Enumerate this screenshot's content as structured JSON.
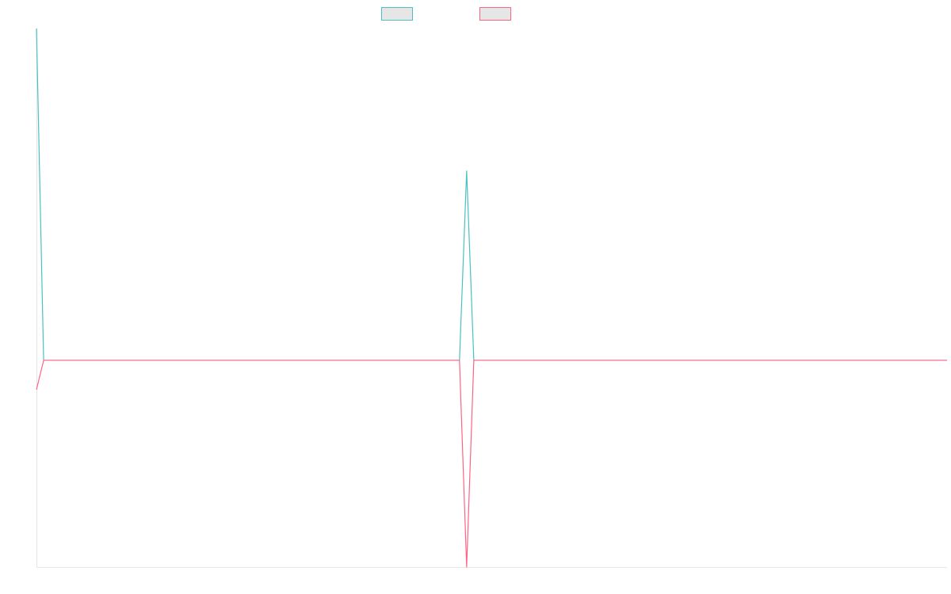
{
  "chart_data": {
    "type": "line",
    "ylim": [
      -100,
      160.5
    ],
    "series": [
      {
        "color": "#4bc0c0",
        "values": [
          160.5,
          0,
          0,
          0,
          0,
          0,
          0,
          0,
          0,
          0,
          0,
          0,
          0,
          0,
          0,
          0,
          0,
          0,
          0,
          0,
          0,
          0,
          0,
          0,
          0,
          0,
          0,
          0,
          0,
          0,
          0,
          0,
          0,
          0,
          0,
          0,
          0,
          0,
          0,
          0,
          0,
          0,
          0,
          0,
          0,
          0,
          0,
          0,
          0,
          0,
          0,
          0,
          0,
          0,
          0,
          0,
          0,
          0,
          0,
          0,
          91.6,
          0,
          0,
          0,
          0,
          0,
          0,
          0,
          0,
          0,
          0,
          0,
          0,
          0,
          0,
          0,
          0,
          0,
          0,
          0,
          0,
          0,
          0,
          0,
          0,
          0,
          0,
          0,
          0,
          0,
          0,
          0,
          0,
          0,
          0,
          0,
          0,
          0,
          0,
          0,
          0,
          0,
          0,
          0,
          0,
          0,
          0,
          0,
          0,
          0,
          0,
          0,
          0,
          0,
          0,
          0,
          0,
          0,
          0,
          0,
          0,
          0,
          0,
          0,
          0,
          0,
          0,
          0
        ]
      },
      {
        "color": "#ff6384",
        "values": [
          -14.2,
          0,
          0,
          0,
          0,
          0,
          0,
          0,
          0,
          0,
          0,
          0,
          0,
          0,
          0,
          0,
          0,
          0,
          0,
          0,
          0,
          0,
          0,
          0,
          0,
          0,
          0,
          0,
          0,
          0,
          0,
          0,
          0,
          0,
          0,
          0,
          0,
          0,
          0,
          0,
          0,
          0,
          0,
          0,
          0,
          0,
          0,
          0,
          0,
          0,
          0,
          0,
          0,
          0,
          0,
          0,
          0,
          0,
          0,
          0,
          -100,
          0,
          0,
          0,
          0,
          0,
          0,
          0,
          0,
          0,
          0,
          0,
          0,
          0,
          0,
          0,
          0,
          0,
          0,
          0,
          0,
          0,
          0,
          0,
          0,
          0,
          0,
          0,
          0,
          0,
          0,
          0,
          0,
          0,
          0,
          0,
          0,
          0,
          0,
          0,
          0,
          0,
          0,
          0,
          0,
          0,
          0,
          0,
          0,
          0,
          0,
          0,
          0,
          0,
          0,
          0,
          0,
          0,
          0,
          0,
          0,
          0,
          0,
          0,
          0,
          0,
          0,
          0
        ]
      }
    ]
  }
}
